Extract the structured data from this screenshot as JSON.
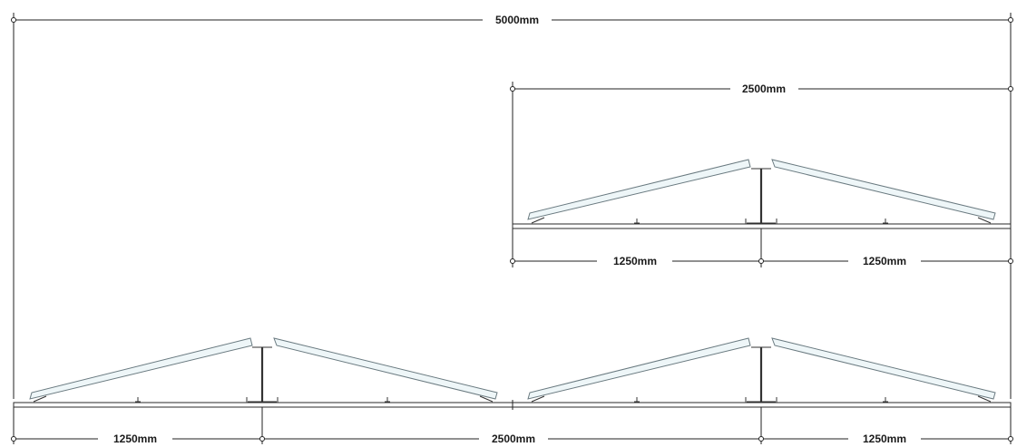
{
  "dimensions": {
    "overall": "5000mm",
    "detail_width": "2500mm",
    "detail_left_half": "1250mm",
    "detail_right_half": "1250mm",
    "bottom_left": "1250mm",
    "bottom_center": "2500mm",
    "bottom_right": "1250mm"
  },
  "colors": {
    "line": "#222222",
    "panel_edge": "#6a7a80",
    "panel_fill": "#eef6f8"
  }
}
